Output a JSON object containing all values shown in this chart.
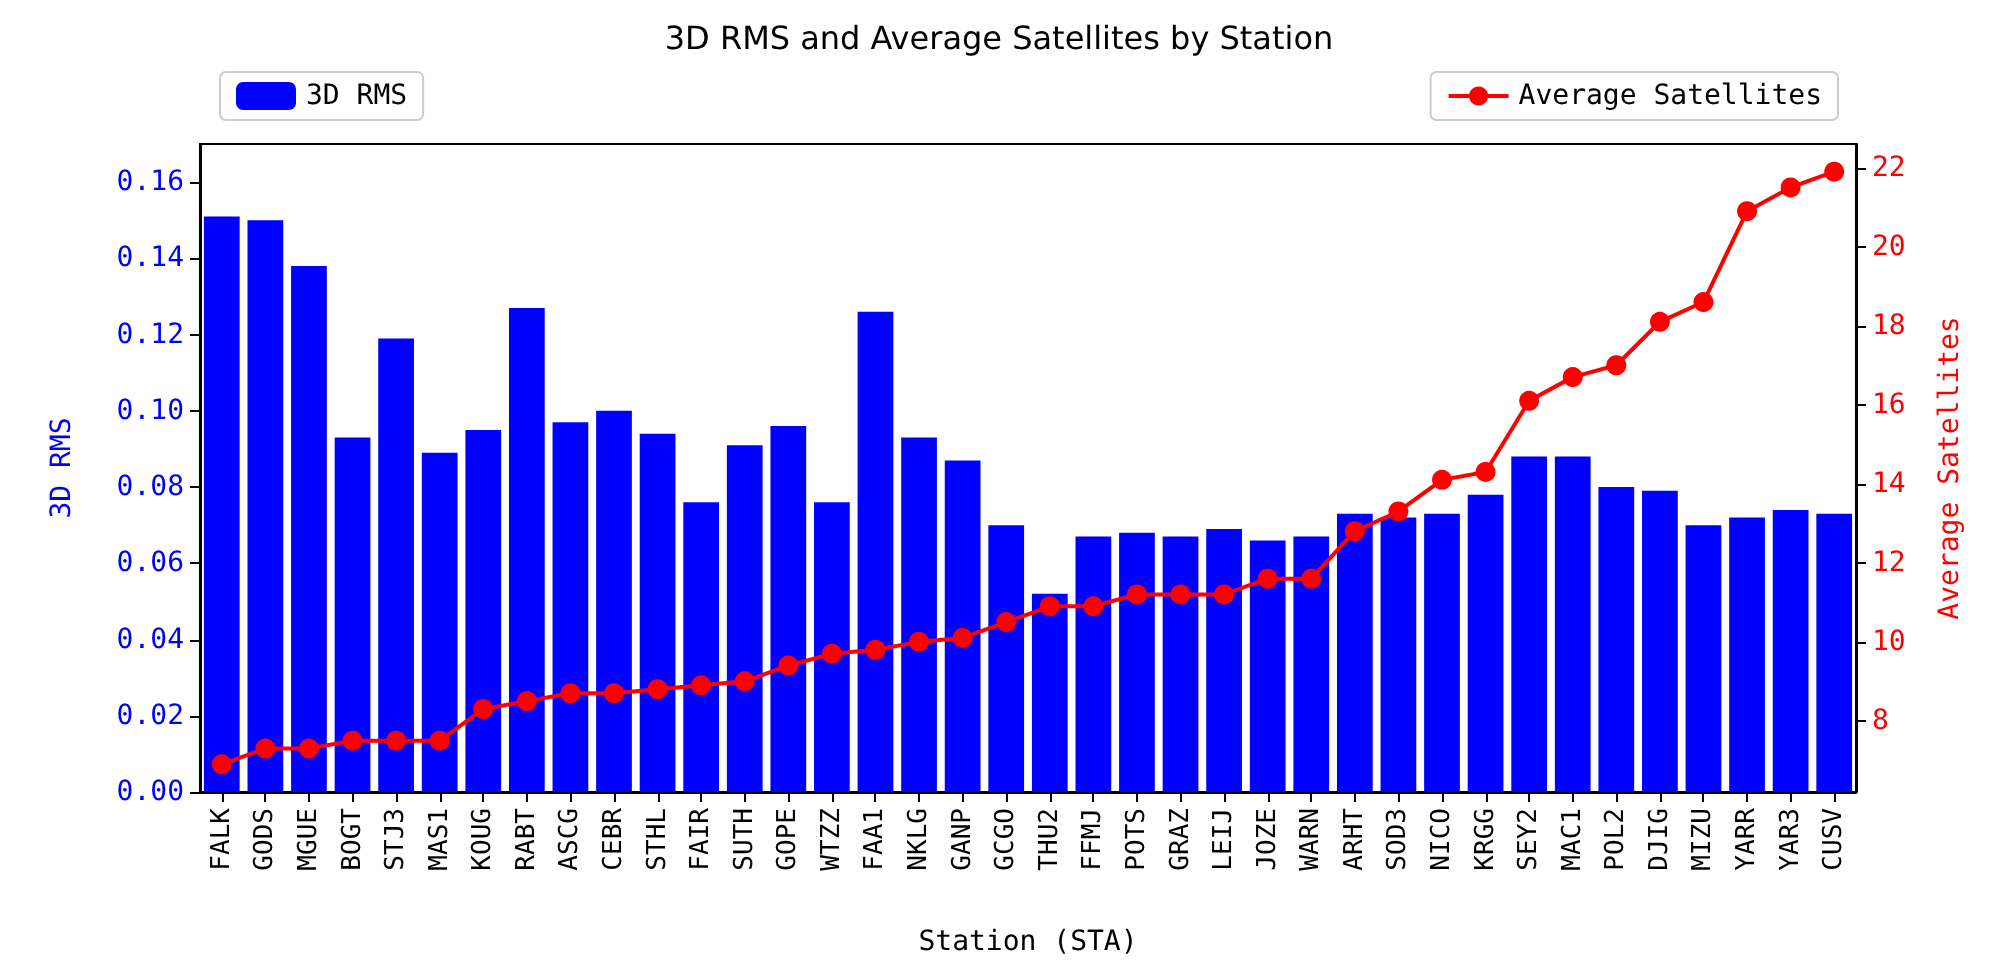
{
  "chart_data": {
    "type": "bar",
    "title": "3D RMS and Average Satellites by Station",
    "xlabel": "Station (STA)",
    "ylabel": "3D RMS",
    "y2label": "Average Satellites",
    "categories": [
      "FALK",
      "GODS",
      "MGUE",
      "BOGT",
      "STJ3",
      "MAS1",
      "KOUG",
      "RABT",
      "ASCG",
      "CEBR",
      "STHL",
      "FAIR",
      "SUTH",
      "GOPE",
      "WTZZ",
      "FAA1",
      "NKLG",
      "GANP",
      "GCGO",
      "THU2",
      "FFMJ",
      "POTS",
      "GRAZ",
      "LEIJ",
      "JOZE",
      "WARN",
      "ARHT",
      "SOD3",
      "NICO",
      "KRGG",
      "SEY2",
      "MAC1",
      "POL2",
      "DJIG",
      "MIZU",
      "YARR",
      "YAR3",
      "CUSV"
    ],
    "series": [
      {
        "name": "3D RMS",
        "color": "#0000ff",
        "values": [
          0.151,
          0.15,
          0.138,
          0.093,
          0.119,
          0.089,
          0.095,
          0.127,
          0.097,
          0.1,
          0.094,
          0.076,
          0.091,
          0.096,
          0.076,
          0.126,
          0.093,
          0.087,
          0.07,
          0.052,
          0.067,
          0.068,
          0.067,
          0.069,
          0.066,
          0.067,
          0.073,
          0.072,
          0.073,
          0.078,
          0.088,
          0.088,
          0.08,
          0.079,
          0.07,
          0.072,
          0.074,
          0.073
        ]
      },
      {
        "name": "Average Satellites",
        "type": "line",
        "axis": "y2",
        "color": "#ff0000",
        "marker": "circle",
        "values": [
          6.9,
          7.3,
          7.3,
          7.5,
          7.5,
          7.5,
          8.3,
          8.5,
          8.7,
          8.7,
          8.8,
          8.9,
          9.0,
          9.4,
          9.7,
          9.8,
          10.0,
          10.1,
          10.5,
          10.9,
          10.9,
          11.2,
          11.2,
          11.2,
          11.6,
          11.6,
          12.8,
          13.3,
          14.1,
          14.3,
          16.1,
          16.7,
          17.0,
          18.1,
          18.6,
          20.9,
          21.5,
          21.9
        ]
      }
    ],
    "ylim": [
      0,
      0.17
    ],
    "yticks": [
      {
        "value": 0,
        "label": "0.00"
      },
      {
        "value": 0.02,
        "label": "0.02"
      },
      {
        "value": 0.04,
        "label": "0.04"
      },
      {
        "value": 0.06,
        "label": "0.06"
      },
      {
        "value": 0.08,
        "label": "0.08"
      },
      {
        "value": 0.1,
        "label": "0.10"
      },
      {
        "value": 0.12,
        "label": "0.12"
      },
      {
        "value": 0.14,
        "label": "0.14"
      },
      {
        "value": 0.16,
        "label": "0.16"
      }
    ],
    "y2lim": [
      6.2,
      22.6
    ],
    "y2ticks": [
      8,
      10,
      12,
      14,
      16,
      18,
      20,
      22
    ],
    "grid": false,
    "legend": "top"
  }
}
